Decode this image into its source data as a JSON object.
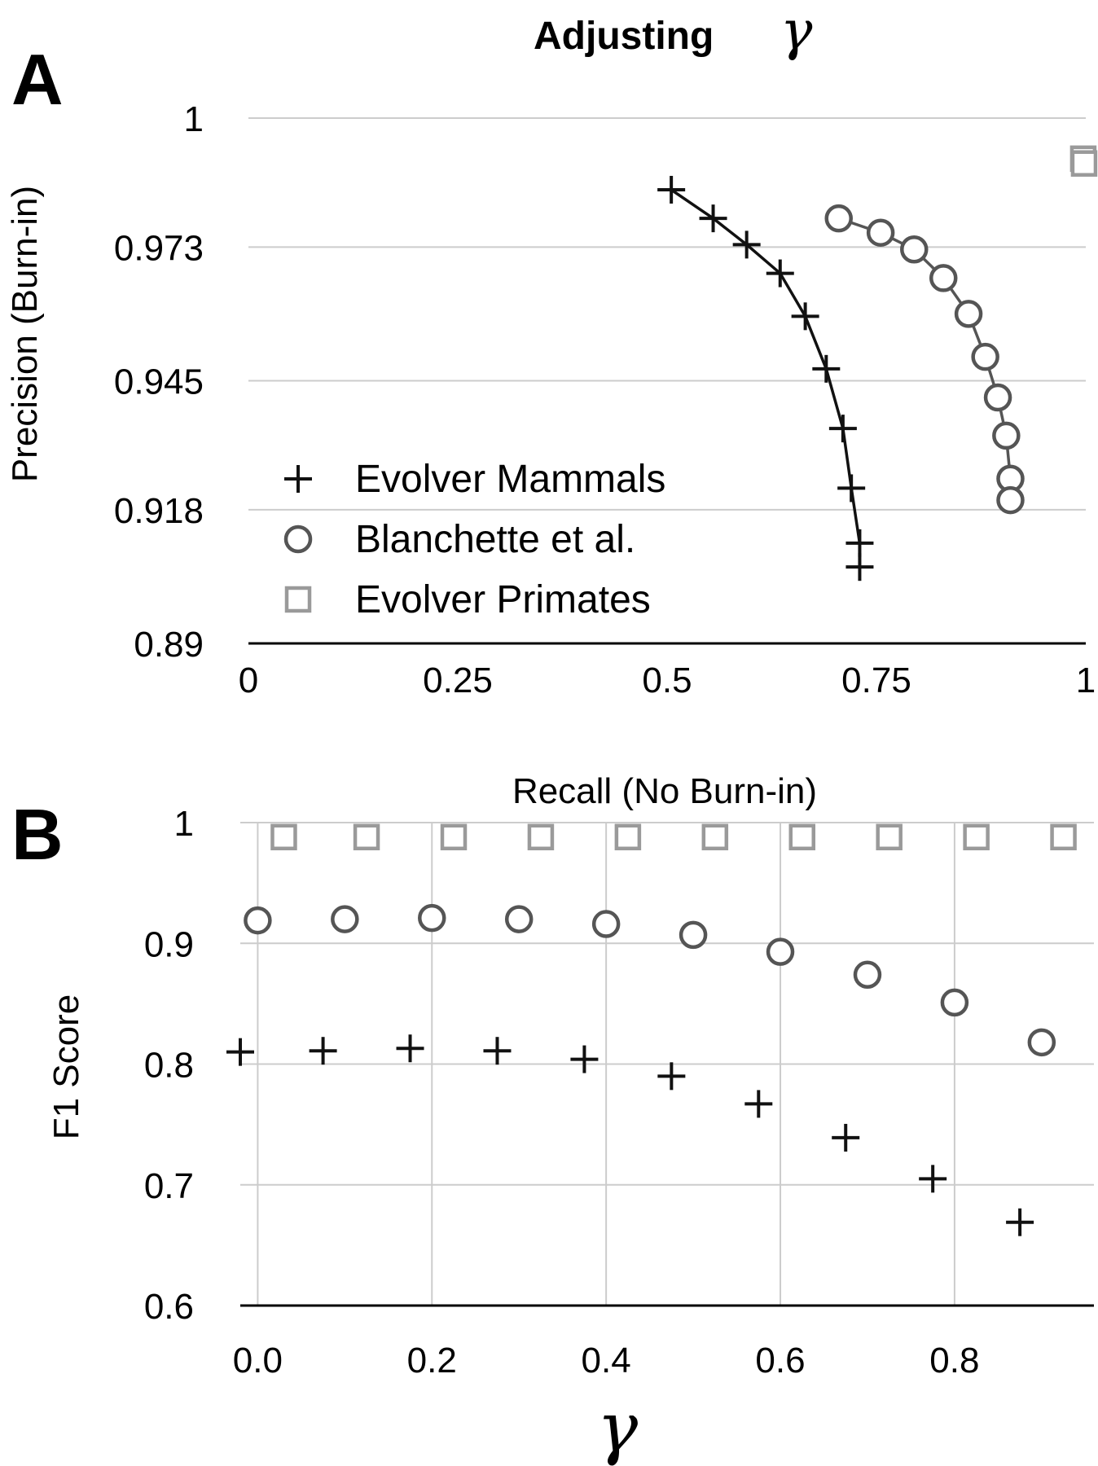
{
  "chart_data": [
    {
      "panel": "A",
      "type": "scatter",
      "title": "Adjusting",
      "title_symbol": "γ",
      "xlabel": "Recall (No Burn-in)",
      "ylabel": "Precision (Burn-in)",
      "xlim": [
        0,
        1
      ],
      "ylim": [
        0.89,
        1
      ],
      "xticks": [
        "0",
        "0.25",
        "0.5",
        "0.75",
        "1"
      ],
      "yticks": [
        "0.89",
        "0.918",
        "0.945",
        "0.973",
        "1"
      ],
      "grid": "horizontal",
      "legend_position": "bottom-left",
      "series": [
        {
          "name": "Evolver Mammals",
          "marker": "plus",
          "color": "#111111",
          "line": true,
          "points": [
            [
              0.505,
              0.985
            ],
            [
              0.555,
              0.979
            ],
            [
              0.595,
              0.9735
            ],
            [
              0.635,
              0.9675
            ],
            [
              0.665,
              0.9585
            ],
            [
              0.69,
              0.9475
            ],
            [
              0.71,
              0.935
            ],
            [
              0.72,
              0.9225
            ],
            [
              0.73,
              0.911
            ],
            [
              0.73,
              0.906
            ]
          ]
        },
        {
          "name": "Blanchette et al.",
          "marker": "circle",
          "color": "#555555",
          "line": true,
          "points": [
            [
              0.705,
              0.979
            ],
            [
              0.755,
              0.976
            ],
            [
              0.795,
              0.9725
            ],
            [
              0.83,
              0.9665
            ],
            [
              0.86,
              0.959
            ],
            [
              0.88,
              0.95
            ],
            [
              0.895,
              0.9415
            ],
            [
              0.905,
              0.9335
            ],
            [
              0.91,
              0.9245
            ],
            [
              0.91,
              0.92
            ]
          ]
        },
        {
          "name": "Evolver Primates",
          "marker": "square",
          "color": "#9a9a9a",
          "line": false,
          "points": [
            [
              0.997,
              0.9915
            ],
            [
              0.998,
              0.9905
            ]
          ]
        }
      ]
    },
    {
      "panel": "B",
      "type": "scatter",
      "xlabel": "γ",
      "ylabel": "F1 Score",
      "xlim": [
        -0.02,
        0.96
      ],
      "ylim": [
        0.6,
        1
      ],
      "xticks": [
        "0.0",
        "0.2",
        "0.4",
        "0.6",
        "0.8"
      ],
      "yticks": [
        "0.6",
        "0.7",
        "0.8",
        "0.9",
        "1"
      ],
      "grid": "both",
      "series": [
        {
          "name": "Evolver Primates",
          "marker": "square",
          "color": "#9a9a9a",
          "points": [
            [
              0.03,
              0.988
            ],
            [
              0.125,
              0.988
            ],
            [
              0.225,
              0.988
            ],
            [
              0.325,
              0.988
            ],
            [
              0.425,
              0.988
            ],
            [
              0.525,
              0.988
            ],
            [
              0.625,
              0.988
            ],
            [
              0.725,
              0.988
            ],
            [
              0.825,
              0.988
            ],
            [
              0.925,
              0.988
            ]
          ]
        },
        {
          "name": "Blanchette et al.",
          "marker": "circle",
          "color": "#555555",
          "points": [
            [
              0.0,
              0.919
            ],
            [
              0.1,
              0.92
            ],
            [
              0.2,
              0.921
            ],
            [
              0.3,
              0.92
            ],
            [
              0.4,
              0.916
            ],
            [
              0.5,
              0.907
            ],
            [
              0.6,
              0.893
            ],
            [
              0.7,
              0.874
            ],
            [
              0.8,
              0.851
            ],
            [
              0.9,
              0.818
            ]
          ]
        },
        {
          "name": "Evolver Mammals",
          "marker": "plus",
          "color": "#111111",
          "points": [
            [
              -0.02,
              0.81
            ],
            [
              0.075,
              0.811
            ],
            [
              0.175,
              0.813
            ],
            [
              0.275,
              0.811
            ],
            [
              0.375,
              0.804
            ],
            [
              0.475,
              0.79
            ],
            [
              0.575,
              0.767
            ],
            [
              0.675,
              0.739
            ],
            [
              0.775,
              0.705
            ],
            [
              0.875,
              0.669
            ]
          ]
        }
      ]
    }
  ],
  "panel_labels": [
    "A",
    "B"
  ]
}
